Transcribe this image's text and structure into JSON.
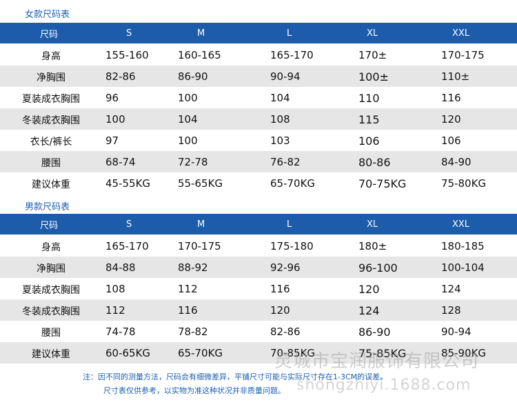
{
  "women": {
    "title": "女款尺码表",
    "headers": [
      "尺码",
      "S",
      "M",
      "L",
      "XL",
      "XXL"
    ],
    "rows": [
      {
        "label": "身高",
        "values": [
          "155-160",
          "160-165",
          "165-170",
          "170±",
          "170-175"
        ]
      },
      {
        "label": "净胸围",
        "values": [
          "82-86",
          "86-90",
          "90-94",
          "100±",
          "110±"
        ]
      },
      {
        "label": "夏装成衣胸围",
        "values": [
          "96",
          "100",
          "104",
          "110",
          "116"
        ]
      },
      {
        "label": "冬装成衣胸围",
        "values": [
          "100",
          "104",
          "108",
          "115",
          "120"
        ]
      },
      {
        "label": "衣长/裤长",
        "values": [
          "97",
          "100",
          "103",
          "106",
          "106"
        ]
      },
      {
        "label": "腰围",
        "values": [
          "68-74",
          "72-78",
          "76-82",
          "80-86",
          "84-90"
        ]
      },
      {
        "label": "建议体重",
        "values": [
          "45-55KG",
          "55-65KG",
          "65-70KG",
          "70-75KG",
          "75-80KG"
        ]
      }
    ]
  },
  "men": {
    "title": "男款尺码表",
    "headers": [
      "尺码",
      "S",
      "M",
      "L",
      "XL",
      "XXL"
    ],
    "rows": [
      {
        "label": "身高",
        "values": [
          "165-170",
          "170-175",
          "175-180",
          "180±",
          "180-185"
        ]
      },
      {
        "label": "净胸围",
        "values": [
          "84-88",
          "88-92",
          "92-96",
          "96-100",
          "100-104"
        ]
      },
      {
        "label": "夏装成衣胸围",
        "values": [
          "108",
          "112",
          "116",
          "120",
          "124"
        ]
      },
      {
        "label": "冬装成衣胸围",
        "values": [
          "112",
          "116",
          "120",
          "124",
          "128"
        ]
      },
      {
        "label": "腰围",
        "values": [
          "74-78",
          "78-82",
          "82-86",
          "86-90",
          "90-94"
        ]
      },
      {
        "label": "建议体重",
        "values": [
          "60-65KG",
          "65-70KG",
          "70-85KG",
          "75-85KG",
          "85-90KG"
        ]
      }
    ]
  },
  "note": {
    "line1": "注：因不同的测量方法，尺码会有细微差异，平铺尺寸可能与实际尺寸存在1-3CM的误差。",
    "line2": "尺寸表仅供参考，以实物为准这种状况并非质量问题。"
  },
  "watermark": {
    "line1": "灵城市宝润服饰有限公司",
    "line2": "shongzhiyi.1688.com"
  }
}
